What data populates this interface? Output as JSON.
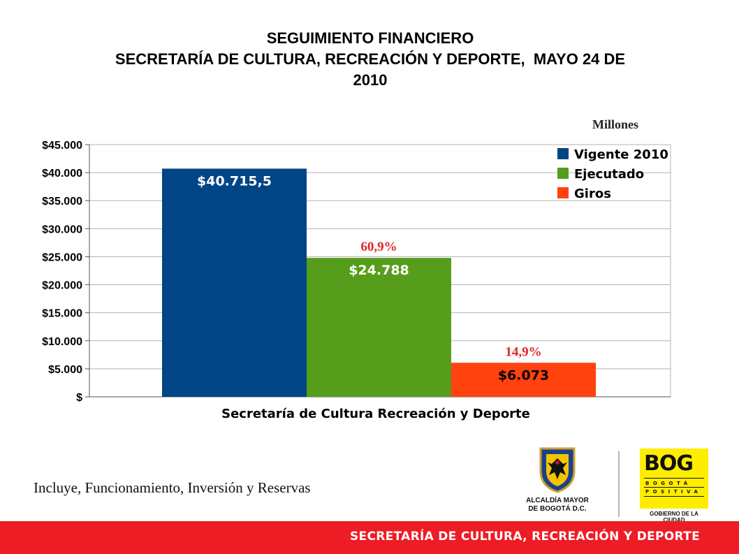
{
  "header": {
    "title_line1": "SEGUIMIENTO FINANCIERO",
    "title_line2": "SECRETARÍA DE CULTURA, RECREACIÓN Y DEPORTE,  MAYO 24 DE",
    "title_line3": "2010"
  },
  "chart_data": {
    "type": "bar",
    "units_label": "Millones",
    "xlabel": "Secretaría de Cultura Recreación y Deporte",
    "ylim": [
      0,
      45000
    ],
    "y_ticks": [
      0,
      5000,
      10000,
      15000,
      20000,
      25000,
      30000,
      35000,
      40000,
      45000
    ],
    "y_tick_labels": [
      "$",
      "$5.000",
      "$10.000",
      "$15.000",
      "$20.000",
      "$25.000",
      "$30.000",
      "$35.000",
      "$40.000",
      "$45.000"
    ],
    "grid": true,
    "legend_position": "top-right",
    "series": [
      {
        "name": "Vigente 2010",
        "value": 40715.5,
        "label": "$40.715,5",
        "color": "#004586",
        "label_color": "#ffffff",
        "pct": ""
      },
      {
        "name": "Ejecutado",
        "value": 24788,
        "label": "$24.788",
        "color": "#579d1c",
        "label_color": "#ffffff",
        "pct": "60,9%"
      },
      {
        "name": "Giros",
        "value": 6073,
        "label": "$6.073",
        "color": "#ff420e",
        "label_color": "#000000",
        "pct": "14,9%"
      }
    ],
    "pct_color": "#e0252b"
  },
  "note": "Incluye, Funcionamiento, Inversión y Reservas",
  "footer": {
    "text": "SECRETARÍA DE CULTURA, RECREACIÓN Y DEPORTE",
    "color": "#ee1c25"
  },
  "logos": {
    "alcaldia": "ALCALDÍA MAYOR\nDE BOGOTÁ D.C.",
    "bog_word": "BOG",
    "bog_line2": "BOGOTÁ",
    "bog_line3": "POSITIVA",
    "bog_sub": "GOBIERNO DE LA CIUDAD",
    "coat_icon": "coat-of-arms-icon"
  }
}
